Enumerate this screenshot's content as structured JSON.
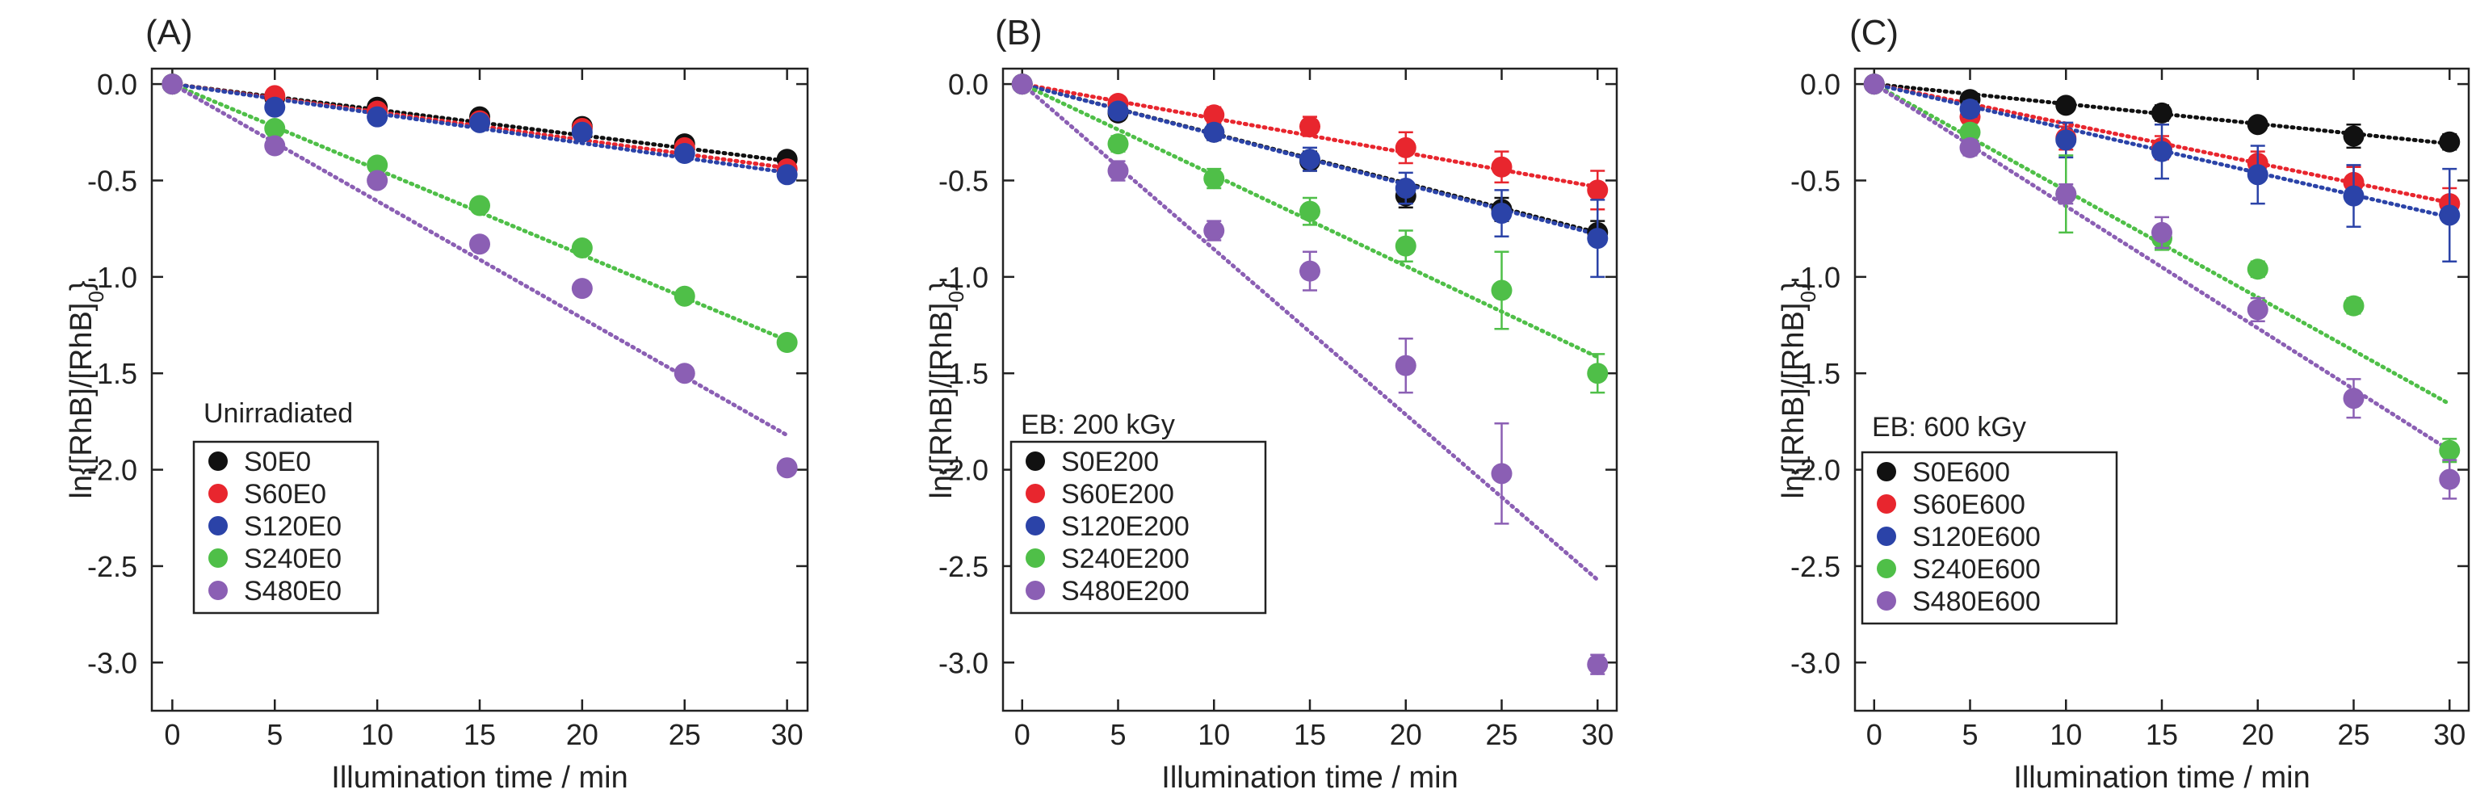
{
  "chart_data": [
    {
      "type": "scatter",
      "panel_label": "(A)",
      "xlabel": "Illumination time / min",
      "ylabel": "ln{[RhB]/[RhB]0}",
      "xlim": [
        -1,
        31
      ],
      "ylim": [
        -3.25,
        0.08
      ],
      "x_ticks": [
        0,
        5,
        10,
        15,
        20,
        25,
        30
      ],
      "y_ticks": [
        0.0,
        -0.5,
        -1.0,
        -1.5,
        -2.0,
        -2.5,
        -3.0
      ],
      "y_tick_labels": [
        "0.0",
        "-0.5",
        "-1.0",
        "-1.5",
        "-2.0",
        "-2.5",
        "-3.0"
      ],
      "legend_title": "Unirradiated",
      "legend_position": "bottom-left",
      "series": [
        {
          "name": "S0E0",
          "color": "#111111",
          "x": [
            0,
            5,
            10,
            15,
            20,
            25,
            30
          ],
          "y": [
            0,
            -0.07,
            -0.12,
            -0.17,
            -0.22,
            -0.31,
            -0.39
          ],
          "err": [
            0,
            0,
            0,
            0,
            0,
            0,
            0
          ],
          "fit_slope": -0.0133
        },
        {
          "name": "S60E0",
          "color": "#e8262e",
          "x": [
            0,
            5,
            10,
            15,
            20,
            25,
            30
          ],
          "y": [
            0,
            -0.06,
            -0.14,
            -0.19,
            -0.23,
            -0.33,
            -0.44
          ],
          "err": [
            0,
            0,
            0,
            0,
            0,
            0,
            0
          ],
          "fit_slope": -0.0145
        },
        {
          "name": "S120E0",
          "color": "#2b43a8",
          "x": [
            0,
            5,
            10,
            15,
            20,
            25,
            30
          ],
          "y": [
            0,
            -0.12,
            -0.17,
            -0.2,
            -0.25,
            -0.36,
            -0.47
          ],
          "err": [
            0,
            0,
            0,
            0,
            0,
            0,
            0
          ],
          "fit_slope": -0.0153
        },
        {
          "name": "S240E0",
          "color": "#4fbf48",
          "x": [
            0,
            5,
            10,
            15,
            20,
            25,
            30
          ],
          "y": [
            0,
            -0.23,
            -0.42,
            -0.63,
            -0.85,
            -1.1,
            -1.34
          ],
          "err": [
            0,
            0,
            0,
            0,
            0,
            0,
            0
          ],
          "fit_slope": -0.0443
        },
        {
          "name": "S480E0",
          "color": "#8b5fb4",
          "x": [
            0,
            5,
            10,
            15,
            20,
            25,
            30
          ],
          "y": [
            0,
            -0.32,
            -0.5,
            -0.83,
            -1.06,
            -1.5,
            -1.99
          ],
          "err": [
            0,
            0,
            0,
            0,
            0,
            0,
            0
          ],
          "fit_slope": -0.0607
        }
      ]
    },
    {
      "type": "scatter",
      "panel_label": "(B)",
      "xlabel": "Illumination time / min",
      "ylabel": "ln{[RhB]/[RhB]0}",
      "xlim": [
        -1,
        31
      ],
      "ylim": [
        -3.25,
        0.08
      ],
      "x_ticks": [
        0,
        5,
        10,
        15,
        20,
        25,
        30
      ],
      "y_ticks": [
        0.0,
        -0.5,
        -1.0,
        -1.5,
        -2.0,
        -2.5,
        -3.0
      ],
      "y_tick_labels": [
        "0.0",
        "-0.5",
        "-1.0",
        "-1.5",
        "-2.0",
        "-2.5",
        "-3.0"
      ],
      "legend_title": "EB: 200 kGy",
      "legend_position": "bottom-left",
      "series": [
        {
          "name": "S0E200",
          "color": "#111111",
          "x": [
            0,
            5,
            10,
            15,
            20,
            25,
            30
          ],
          "y": [
            0,
            -0.15,
            -0.25,
            -0.4,
            -0.58,
            -0.65,
            -0.77
          ],
          "err": [
            0,
            0.03,
            0.04,
            0.05,
            0.06,
            0.06,
            0.06
          ],
          "fit_slope": -0.0257
        },
        {
          "name": "S60E200",
          "color": "#e8262e",
          "x": [
            0,
            5,
            10,
            15,
            20,
            25,
            30
          ],
          "y": [
            0,
            -0.1,
            -0.16,
            -0.22,
            -0.33,
            -0.43,
            -0.55
          ],
          "err": [
            0,
            0.03,
            0.04,
            0.05,
            0.08,
            0.08,
            0.1
          ],
          "fit_slope": -0.0178
        },
        {
          "name": "S120E200",
          "color": "#2b43a8",
          "x": [
            0,
            5,
            10,
            15,
            20,
            25,
            30
          ],
          "y": [
            0,
            -0.14,
            -0.25,
            -0.39,
            -0.54,
            -0.67,
            -0.8
          ],
          "err": [
            0,
            0.03,
            0.04,
            0.06,
            0.08,
            0.12,
            0.2
          ],
          "fit_slope": -0.026
        },
        {
          "name": "S240E200",
          "color": "#4fbf48",
          "x": [
            0,
            5,
            10,
            15,
            20,
            25,
            30
          ],
          "y": [
            0,
            -0.31,
            -0.49,
            -0.66,
            -0.84,
            -1.07,
            -1.5
          ],
          "err": [
            0,
            0.04,
            0.05,
            0.07,
            0.08,
            0.2,
            0.1
          ],
          "fit_slope": -0.0472
        },
        {
          "name": "S480E200",
          "color": "#8b5fb4",
          "x": [
            0,
            5,
            10,
            15,
            20,
            25,
            30
          ],
          "y": [
            0,
            -0.45,
            -0.76,
            -0.97,
            -1.46,
            -2.02,
            -3.01
          ],
          "err": [
            0,
            0.05,
            0.05,
            0.1,
            0.14,
            0.26,
            0.05
          ],
          "fit_slope": -0.0857
        }
      ]
    },
    {
      "type": "scatter",
      "panel_label": "(C)",
      "xlabel": "Illumination time / min",
      "ylabel": "ln{[RhB]/[RhB]0}",
      "xlim": [
        -1,
        31
      ],
      "ylim": [
        -3.25,
        0.08
      ],
      "x_ticks": [
        0,
        5,
        10,
        15,
        20,
        25,
        30
      ],
      "y_ticks": [
        0.0,
        -0.5,
        -1.0,
        -1.5,
        -2.0,
        -2.5,
        -3.0
      ],
      "y_tick_labels": [
        "0.0",
        "-0.5",
        "-1.0",
        "-1.5",
        "-2.0",
        "-2.5",
        "-3.0"
      ],
      "legend_title": "EB: 600 kGy",
      "legend_position": "bottom-left",
      "series": [
        {
          "name": "S0E600",
          "color": "#111111",
          "x": [
            0,
            5,
            10,
            15,
            20,
            25,
            30
          ],
          "y": [
            0,
            -0.08,
            -0.11,
            -0.15,
            -0.21,
            -0.27,
            -0.3
          ],
          "err": [
            0,
            0.02,
            0.03,
            0.04,
            0.03,
            0.06,
            0.04
          ],
          "fit_slope": -0.0103
        },
        {
          "name": "S60E600",
          "color": "#e8262e",
          "x": [
            0,
            5,
            10,
            15,
            20,
            25,
            30
          ],
          "y": [
            0,
            -0.17,
            -0.28,
            -0.33,
            -0.41,
            -0.51,
            -0.62
          ],
          "err": [
            0,
            0.04,
            0.06,
            0.06,
            0.06,
            0.08,
            0.08
          ],
          "fit_slope": -0.0205
        },
        {
          "name": "S120E600",
          "color": "#2b43a8",
          "x": [
            0,
            5,
            10,
            15,
            20,
            25,
            30
          ],
          "y": [
            0,
            -0.13,
            -0.29,
            -0.35,
            -0.47,
            -0.58,
            -0.68
          ],
          "err": [
            0,
            0.04,
            0.09,
            0.14,
            0.15,
            0.16,
            0.24
          ],
          "fit_slope": -0.023
        },
        {
          "name": "S240E600",
          "color": "#4fbf48",
          "x": [
            0,
            5,
            10,
            15,
            20,
            25,
            30
          ],
          "y": [
            0,
            -0.25,
            -0.57,
            -0.8,
            -0.96,
            -1.15,
            -1.9
          ],
          "err": [
            0,
            0.04,
            0.2,
            0.06,
            0.04,
            0.04,
            0.06
          ],
          "fit_slope": -0.0553
        },
        {
          "name": "S480E600",
          "color": "#8b5fb4",
          "x": [
            0,
            5,
            10,
            15,
            20,
            25,
            30
          ],
          "y": [
            0,
            -0.33,
            -0.57,
            -0.77,
            -1.17,
            -1.63,
            -2.05
          ],
          "err": [
            0,
            0.04,
            0.05,
            0.08,
            0.06,
            0.1,
            0.1
          ],
          "fit_slope": -0.0633
        }
      ]
    }
  ]
}
